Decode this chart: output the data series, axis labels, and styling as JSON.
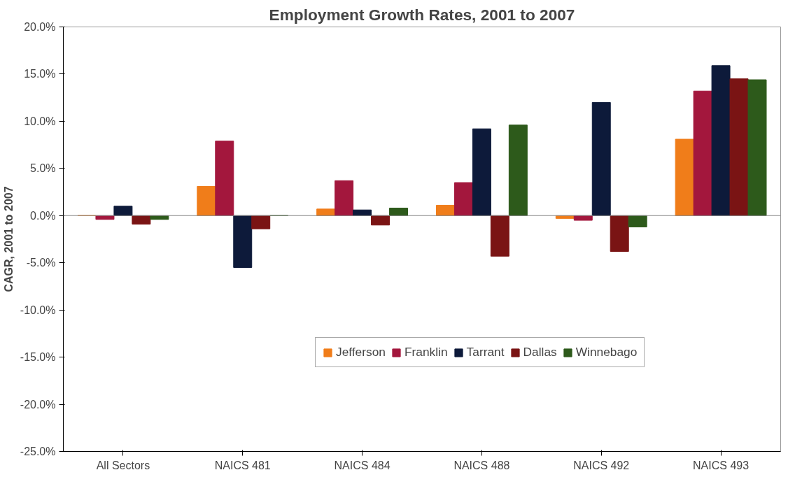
{
  "chart_data": {
    "type": "bar",
    "title": "Employment Growth Rates, 2001 to 2007",
    "ylabel": "CAGR, 2001 to 2007",
    "categories": [
      "All Sectors",
      "NAICS 481",
      "NAICS 484",
      "NAICS 488",
      "NAICS 492",
      "NAICS 493"
    ],
    "series": [
      {
        "name": "Jefferson",
        "color": "#f07d1a",
        "values": [
          0,
          3.1,
          0.7,
          1.1,
          -0.3,
          8.1
        ]
      },
      {
        "name": "Franklin",
        "color": "#a3173d",
        "values": [
          -0.4,
          7.9,
          3.7,
          3.5,
          -0.5,
          13.2
        ]
      },
      {
        "name": "Tarrant",
        "color": "#0d1a3a",
        "values": [
          1.0,
          -5.5,
          0.6,
          9.2,
          12.0,
          15.9
        ]
      },
      {
        "name": "Dallas",
        "color": "#7a1414",
        "values": [
          -0.9,
          -1.4,
          -1.0,
          -4.3,
          -3.8,
          14.5
        ]
      },
      {
        "name": "Winnebago",
        "color": "#2d5a1b",
        "values": [
          -0.4,
          0,
          0.8,
          9.6,
          -1.2,
          14.4
        ]
      }
    ],
    "ylim": [
      -25,
      20
    ],
    "yticks": [
      {
        "value": -25,
        "label": "-25.0%"
      },
      {
        "value": -20,
        "label": "-20.0%"
      },
      {
        "value": -15,
        "label": "-15.0%"
      },
      {
        "value": -10,
        "label": "-10.0%"
      },
      {
        "value": -5,
        "label": "-5.0%"
      },
      {
        "value": 0,
        "label": "0.0%"
      },
      {
        "value": 5,
        "label": "5.0%"
      },
      {
        "value": 10,
        "label": "10.0%"
      },
      {
        "value": 15,
        "label": "15.0%"
      },
      {
        "value": 20,
        "label": "20.0%"
      }
    ],
    "ref_lines": [
      {
        "axis": "y",
        "value": 0,
        "color": "#888888"
      }
    ],
    "grid": false,
    "legend": "bottom"
  }
}
